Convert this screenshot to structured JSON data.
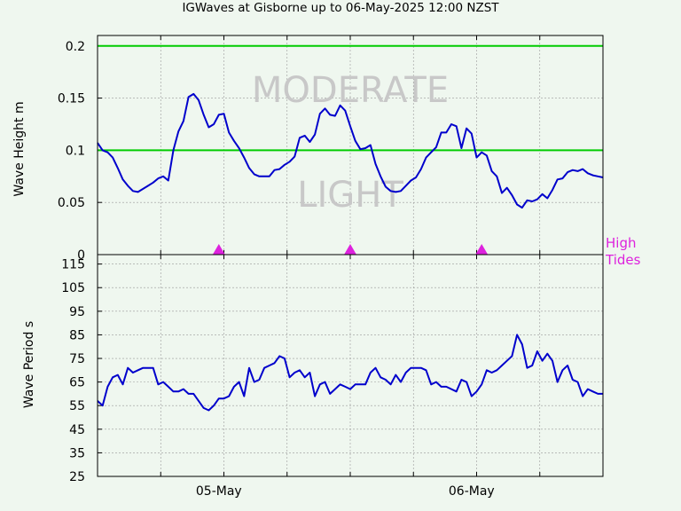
{
  "chart_data": [
    {
      "type": "line",
      "title": "IGWaves at Gisborne up to 06-May-2025 12:00 NZST",
      "ylabel": "Wave Height m",
      "ylim": [
        0,
        0.21
      ],
      "y_ticks": [
        "0",
        "0.05",
        "0.1",
        "0.15",
        "0.2"
      ],
      "x_tick_labels": [
        "05-May",
        "06-May"
      ],
      "grid": true,
      "thresholds": [
        {
          "value": 0.1,
          "color": "#00cc00"
        },
        {
          "value": 0.2,
          "color": "#00cc00"
        }
      ],
      "zone_labels": [
        {
          "text": "MODERATE",
          "y": 0.158
        },
        {
          "text": "LIGHT",
          "y": 0.058
        }
      ],
      "high_tides": {
        "label_line1": "High",
        "label_line2": "Tides",
        "color": "#dd22dd",
        "times": [
          0.24,
          0.5,
          0.76
        ]
      },
      "series": [
        {
          "color": "#0000cc",
          "x": [
            0.0,
            0.01,
            0.02,
            0.03,
            0.04,
            0.05,
            0.06,
            0.07,
            0.08,
            0.09,
            0.1,
            0.11,
            0.12,
            0.13,
            0.14,
            0.15,
            0.16,
            0.17,
            0.18,
            0.19,
            0.2,
            0.21,
            0.22,
            0.23,
            0.24,
            0.25,
            0.26,
            0.27,
            0.28,
            0.29,
            0.3,
            0.31,
            0.32,
            0.33,
            0.34,
            0.35,
            0.36,
            0.37,
            0.38,
            0.39,
            0.4,
            0.41,
            0.42,
            0.43,
            0.44,
            0.45,
            0.46,
            0.47,
            0.48,
            0.49,
            0.5,
            0.51,
            0.52,
            0.53,
            0.54,
            0.55,
            0.56,
            0.57,
            0.58,
            0.59,
            0.6,
            0.61,
            0.62,
            0.63,
            0.64,
            0.65,
            0.66,
            0.67,
            0.68,
            0.69,
            0.7,
            0.71,
            0.72,
            0.73,
            0.74,
            0.75,
            0.76,
            0.77,
            0.78,
            0.79,
            0.8,
            0.81,
            0.82,
            0.83,
            0.84,
            0.85,
            0.86,
            0.87,
            0.88,
            0.89,
            0.9,
            0.91,
            0.92,
            0.93,
            0.94,
            0.95,
            0.96,
            0.97,
            0.98,
            0.99,
            1.0
          ],
          "values": [
            0.107,
            0.1,
            0.098,
            0.093,
            0.083,
            0.072,
            0.066,
            0.061,
            0.06,
            0.063,
            0.066,
            0.069,
            0.073,
            0.075,
            0.071,
            0.1,
            0.118,
            0.128,
            0.151,
            0.154,
            0.148,
            0.134,
            0.122,
            0.125,
            0.134,
            0.135,
            0.117,
            0.109,
            0.102,
            0.093,
            0.083,
            0.077,
            0.075,
            0.075,
            0.075,
            0.081,
            0.082,
            0.086,
            0.089,
            0.094,
            0.112,
            0.114,
            0.108,
            0.115,
            0.135,
            0.14,
            0.134,
            0.133,
            0.143,
            0.138,
            0.123,
            0.109,
            0.101,
            0.102,
            0.105,
            0.087,
            0.075,
            0.065,
            0.061,
            0.06,
            0.061,
            0.066,
            0.071,
            0.074,
            0.082,
            0.093,
            0.098,
            0.103,
            0.117,
            0.117,
            0.125,
            0.123,
            0.102,
            0.121,
            0.116,
            0.093,
            0.098,
            0.095,
            0.08,
            0.075,
            0.059,
            0.064,
            0.057,
            0.048,
            0.045,
            0.052,
            0.051,
            0.053,
            0.058,
            0.054,
            0.062,
            0.072,
            0.073,
            0.079,
            0.081,
            0.08,
            0.082,
            0.078,
            0.076,
            0.075,
            0.074
          ]
        }
      ]
    },
    {
      "type": "line",
      "ylabel": "Wave Period s",
      "ylim": [
        25,
        119
      ],
      "y_ticks": [
        "25",
        "35",
        "45",
        "55",
        "65",
        "75",
        "85",
        "95",
        "105",
        "115"
      ],
      "x_tick_labels": [
        "05-May",
        "06-May"
      ],
      "grid": true,
      "series": [
        {
          "color": "#0000cc",
          "x": [
            0.0,
            0.01,
            0.02,
            0.03,
            0.04,
            0.05,
            0.06,
            0.07,
            0.08,
            0.09,
            0.1,
            0.11,
            0.12,
            0.13,
            0.14,
            0.15,
            0.16,
            0.17,
            0.18,
            0.19,
            0.2,
            0.21,
            0.22,
            0.23,
            0.24,
            0.25,
            0.26,
            0.27,
            0.28,
            0.29,
            0.3,
            0.31,
            0.32,
            0.33,
            0.34,
            0.35,
            0.36,
            0.37,
            0.38,
            0.39,
            0.4,
            0.41,
            0.42,
            0.43,
            0.44,
            0.45,
            0.46,
            0.47,
            0.48,
            0.49,
            0.5,
            0.51,
            0.52,
            0.53,
            0.54,
            0.55,
            0.56,
            0.57,
            0.58,
            0.59,
            0.6,
            0.61,
            0.62,
            0.63,
            0.64,
            0.65,
            0.66,
            0.67,
            0.68,
            0.69,
            0.7,
            0.71,
            0.72,
            0.73,
            0.74,
            0.75,
            0.76,
            0.77,
            0.78,
            0.79,
            0.8,
            0.81,
            0.82,
            0.83,
            0.84,
            0.85,
            0.86,
            0.87,
            0.88,
            0.89,
            0.9,
            0.91,
            0.92,
            0.93,
            0.94,
            0.95,
            0.96,
            0.97,
            0.98,
            0.99,
            1.0
          ],
          "values": [
            57,
            55,
            63,
            67,
            68,
            64,
            71,
            69,
            70,
            71,
            71,
            71,
            64,
            65,
            63,
            61,
            61,
            62,
            60,
            60,
            57,
            54,
            53,
            55,
            58,
            58,
            59,
            63,
            65,
            59,
            71,
            65,
            66,
            71,
            72,
            73,
            76,
            75,
            67,
            69,
            70,
            67,
            69,
            59,
            64,
            65,
            60,
            62,
            64,
            63,
            62,
            64,
            64,
            64,
            69,
            71,
            67,
            66,
            64,
            68,
            65,
            69,
            71,
            71,
            71,
            70,
            64,
            65,
            63,
            63,
            62,
            61,
            66,
            65,
            59,
            61,
            64,
            70,
            69,
            70,
            72,
            74,
            76,
            85,
            81,
            71,
            72,
            78,
            74,
            77,
            74,
            65,
            70,
            72,
            66,
            65,
            59,
            62,
            61,
            60,
            60
          ]
        }
      ]
    }
  ]
}
